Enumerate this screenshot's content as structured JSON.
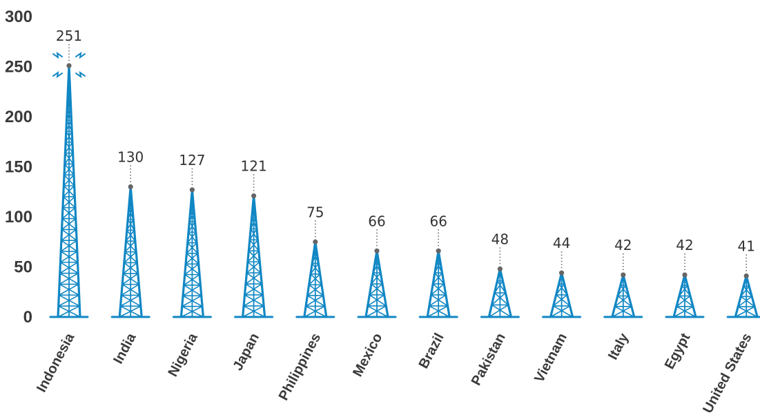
{
  "chart_data": {
    "type": "bar",
    "title": "",
    "xlabel": "",
    "ylabel": "",
    "ylim": [
      0,
      300
    ],
    "yticks": [
      0,
      50,
      100,
      150,
      200,
      250,
      300
    ],
    "categories": [
      "Indonesia",
      "India",
      "Nigeria",
      "Japan",
      "Philippines",
      "Mexico",
      "Brazil",
      "Pakistan",
      "Vietnam",
      "Italy",
      "Egypt",
      "United States"
    ],
    "values": [
      251,
      130,
      127,
      121,
      75,
      66,
      66,
      48,
      44,
      42,
      42,
      41
    ],
    "bar_style": "radio-tower",
    "colors": {
      "tower": "#1187c4",
      "marker": "#666666",
      "text": "#333333"
    }
  }
}
